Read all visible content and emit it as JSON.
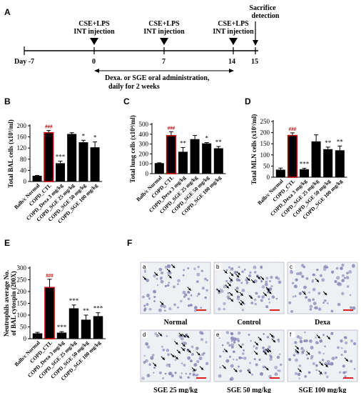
{
  "panels": {
    "A": "A",
    "B": "B",
    "C": "C",
    "D": "D",
    "E": "E",
    "F": "F"
  },
  "timeline": {
    "ticks": [
      "Day -7",
      "0",
      "7",
      "14",
      "15"
    ],
    "events": [
      {
        "line1": "CSE+LPS",
        "line2": "INT injection"
      },
      {
        "line1": "CSE+LPS",
        "line2": "INT injection"
      },
      {
        "line1": "CSE+LPS",
        "line2": "INT injection"
      }
    ],
    "sacrifice": {
      "line1": "Sacrifice",
      "line2": "detection"
    },
    "admin": {
      "line1": "Dexa. or SGE oral administration,",
      "line2": "daily for 2 weeks"
    }
  },
  "chart_data": [
    {
      "id": "B",
      "type": "bar",
      "ylabel": "Total BAL cells (x10³/ml)",
      "ylim": [
        0,
        200
      ],
      "yticks": [
        0,
        40,
        80,
        120,
        160,
        200
      ],
      "categories": [
        "Balb/c Normal",
        "COPD_CTL",
        "COPD_Dexa 3 mg/kg",
        "COPD_SGE 25 mg/kg",
        "COPD_SGE 50 mg/kg",
        "COPD_SGE 100 mg/kg"
      ],
      "values": [
        20,
        175,
        65,
        170,
        140,
        122
      ],
      "errors": [
        2,
        8,
        8,
        5,
        8,
        20
      ],
      "highlight": [
        false,
        true,
        false,
        false,
        false,
        false
      ],
      "annotations": [
        "",
        "###",
        "***",
        "",
        "*",
        "*"
      ]
    },
    {
      "id": "C",
      "type": "bar",
      "ylabel": "Total lung cells (x10⁴/ml)",
      "ylim": [
        0,
        500
      ],
      "yticks": [
        0,
        100,
        200,
        300,
        400,
        500
      ],
      "categories": [
        "Balb/c Normal",
        "COPD_CTL",
        "COPD_Dexa 3 mg/kg",
        "COPD_SGE 25 mg/kg",
        "COPD_SGE 50 mg/kg",
        "COPD_SGE 100 mg/kg"
      ],
      "values": [
        105,
        385,
        220,
        348,
        305,
        255
      ],
      "errors": [
        5,
        40,
        45,
        40,
        10,
        20
      ],
      "highlight": [
        false,
        true,
        false,
        false,
        false,
        false
      ],
      "annotations": [
        "",
        "###",
        "**",
        "",
        "*",
        "**"
      ]
    },
    {
      "id": "D",
      "type": "bar",
      "ylabel": "Total MLN cells (x10⁵/ml)",
      "ylim": [
        0,
        250
      ],
      "yticks": [
        0,
        50,
        100,
        150,
        200,
        250
      ],
      "categories": [
        "Balb/c Normal",
        "COPD_CTL",
        "COPD_Dexa 3 mg/kg",
        "COPD_SGE 25 mg/kg",
        "COPD_SGE 50 mg/kg",
        "COPD_SGE 100 mg/kg"
      ],
      "values": [
        33,
        187,
        35,
        160,
        125,
        120
      ],
      "errors": [
        8,
        12,
        5,
        30,
        10,
        20
      ],
      "highlight": [
        false,
        true,
        false,
        false,
        false,
        false
      ],
      "annotations": [
        "",
        "###",
        "***",
        "",
        "**",
        "**"
      ]
    },
    {
      "id": "E",
      "type": "bar",
      "ylabel": "Neutrophils average No. of BAL cytospin (200X)",
      "ylabel_lines": [
        "Neutrophils average No.",
        "of BAL cytospin (200X)"
      ],
      "ylim": [
        0,
        300
      ],
      "yticks": [
        0,
        50,
        100,
        150,
        200,
        250,
        300
      ],
      "categories": [
        "Balb/c Normal",
        "COPD_CTL",
        "COPD_Dexa 3 mg/kg",
        "COPD_SGE 25 mg/kg",
        "COPD_SGE 50 mg/kg",
        "COPD_SGE 100 mg/kg"
      ],
      "values": [
        22,
        217,
        25,
        128,
        80,
        95
      ],
      "errors": [
        5,
        35,
        5,
        15,
        20,
        15
      ],
      "highlight": [
        false,
        true,
        false,
        false,
        false,
        false
      ],
      "annotations": [
        "",
        "###",
        "***",
        "***",
        "**",
        "***"
      ]
    }
  ],
  "micrographs": [
    {
      "letter": "a",
      "label": "Normal",
      "arrows": 7
    },
    {
      "letter": "b",
      "label": "Control",
      "arrows": 22
    },
    {
      "letter": "c",
      "label": "Dexa",
      "arrows": 3
    },
    {
      "letter": "d",
      "label": "SGE 25 mg/kg",
      "arrows": 16
    },
    {
      "letter": "e",
      "label": "SGE 50 mg/kg",
      "arrows": 14
    },
    {
      "letter": "f",
      "label": "SGE 100 mg/kg",
      "arrows": 10
    }
  ],
  "colors": {
    "bar": "#000000",
    "highlight_edge": "#c00000",
    "scale_bar": "#e02020",
    "tissue": "#eef0f4",
    "cell": "#8a86b8"
  }
}
